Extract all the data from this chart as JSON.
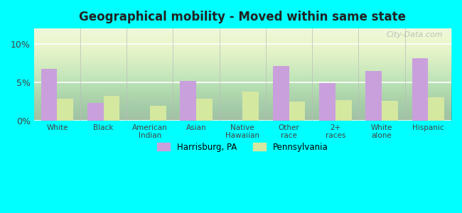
{
  "title": "Geographical mobility - Moved within same state",
  "categories": [
    "White",
    "Black",
    "American\nIndian",
    "Asian",
    "Native\nHawaiian",
    "Other\nrace",
    "2+\nraces",
    "White\nalone",
    "Hispanic"
  ],
  "harrisburg_values": [
    6.7,
    2.3,
    0.0,
    5.2,
    0.0,
    7.1,
    4.9,
    6.5,
    8.1
  ],
  "pennsylvania_values": [
    2.9,
    3.2,
    1.9,
    2.9,
    3.8,
    2.5,
    2.7,
    2.6,
    3.0
  ],
  "harrisburg_color": "#c9a0dc",
  "pennsylvania_color": "#d4e8a0",
  "background_color": "#00ffff",
  "bar_width": 0.35,
  "ylim": [
    0,
    12
  ],
  "yticks": [
    0,
    5,
    10
  ],
  "ytick_labels": [
    "0%",
    "5%",
    "10%"
  ],
  "legend_harrisburg": "Harrisburg, PA",
  "legend_pennsylvania": "Pennsylvania",
  "watermark": "City-Data.com"
}
